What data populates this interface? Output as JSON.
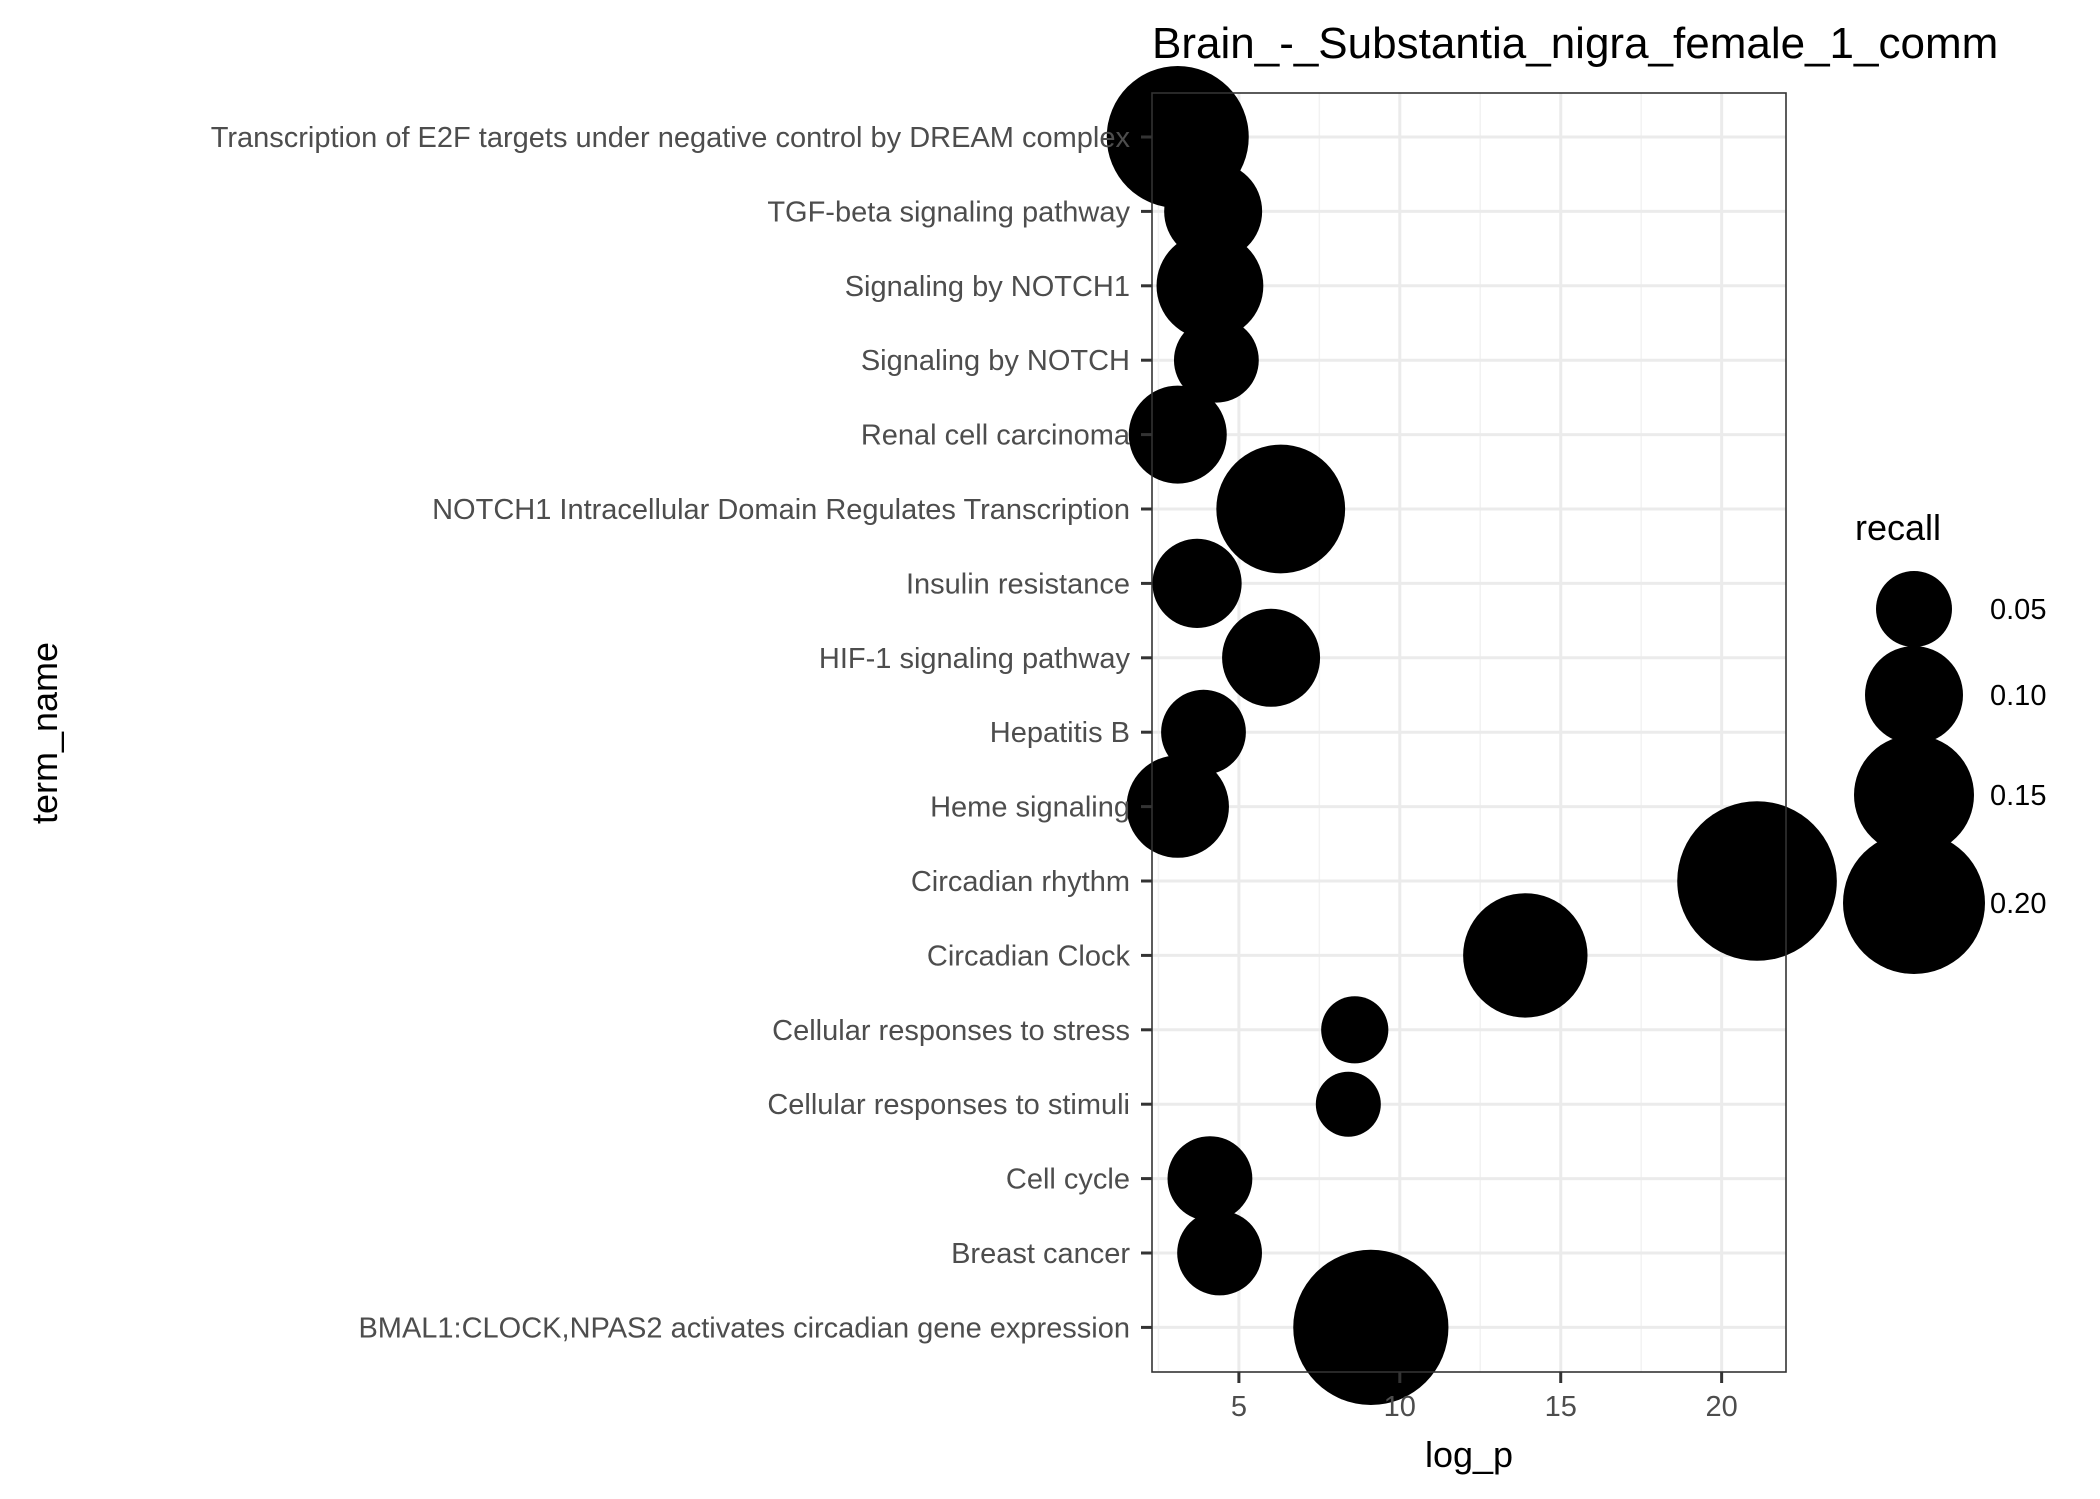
{
  "chart_data": {
    "type": "scatter",
    "title": "Brain_-_Substantia_nigra_female_1_comm",
    "xlabel": "log_p",
    "ylabel": "term_name",
    "xlim": [
      2.3,
      22.0
    ],
    "xticks": [
      5,
      10,
      15,
      20
    ],
    "xtick_labels": [
      "5",
      "10",
      "15",
      "20"
    ],
    "grid": true,
    "legend": {
      "title": "recall",
      "position": "right",
      "entries": [
        {
          "label": "0.05",
          "value": 0.05
        },
        {
          "label": "0.10",
          "value": 0.1
        },
        {
          "label": "0.15",
          "value": 0.15
        },
        {
          "label": "0.20",
          "value": 0.2
        }
      ]
    },
    "categories": [
      "Transcription of E2F targets under negative control by DREAM complex",
      "TGF-beta signaling pathway",
      "Signaling by NOTCH1",
      "Signaling by NOTCH",
      "Renal cell carcinoma",
      "NOTCH1 Intracellular Domain Regulates Transcription",
      "Insulin resistance",
      "HIF-1 signaling pathway",
      "Hepatitis B",
      "Heme signaling",
      "Circadian rhythm",
      "Circadian Clock",
      "Cellular responses to stress",
      "Cellular responses to stimuli",
      "Cell cycle",
      "Breast cancer",
      "BMAL1:CLOCK,NPAS2 activates circadian gene expression"
    ],
    "points": [
      {
        "term": "Transcription of E2F targets under negative control by DREAM complex",
        "log_p": 3.1,
        "recall": 0.2
      },
      {
        "term": "TGF-beta signaling pathway",
        "log_p": 4.2,
        "recall": 0.1
      },
      {
        "term": "Signaling by NOTCH1",
        "log_p": 4.1,
        "recall": 0.12
      },
      {
        "term": "Signaling by NOTCH",
        "log_p": 4.3,
        "recall": 0.07
      },
      {
        "term": "Renal cell carcinoma",
        "log_p": 3.1,
        "recall": 0.1
      },
      {
        "term": "NOTCH1 Intracellular Domain Regulates Transcription",
        "log_p": 6.3,
        "recall": 0.17
      },
      {
        "term": "Insulin resistance",
        "log_p": 3.7,
        "recall": 0.08
      },
      {
        "term": "HIF-1 signaling pathway",
        "log_p": 6.0,
        "recall": 0.1
      },
      {
        "term": "Hepatitis B",
        "log_p": 3.9,
        "recall": 0.07
      },
      {
        "term": "Heme signaling",
        "log_p": 3.1,
        "recall": 0.11
      },
      {
        "term": "Circadian rhythm",
        "log_p": 21.1,
        "recall": 0.24
      },
      {
        "term": "Circadian Clock",
        "log_p": 13.9,
        "recall": 0.16
      },
      {
        "term": "Cellular responses to stress",
        "log_p": 8.6,
        "recall": 0.03
      },
      {
        "term": "Cellular responses to stimuli",
        "log_p": 8.4,
        "recall": 0.025
      },
      {
        "term": "Cell cycle",
        "log_p": 4.1,
        "recall": 0.07
      },
      {
        "term": "Breast cancer",
        "log_p": 4.4,
        "recall": 0.07
      },
      {
        "term": "BMAL1:CLOCK,NPAS2 activates circadian gene expression",
        "log_p": 9.1,
        "recall": 0.23
      }
    ]
  }
}
